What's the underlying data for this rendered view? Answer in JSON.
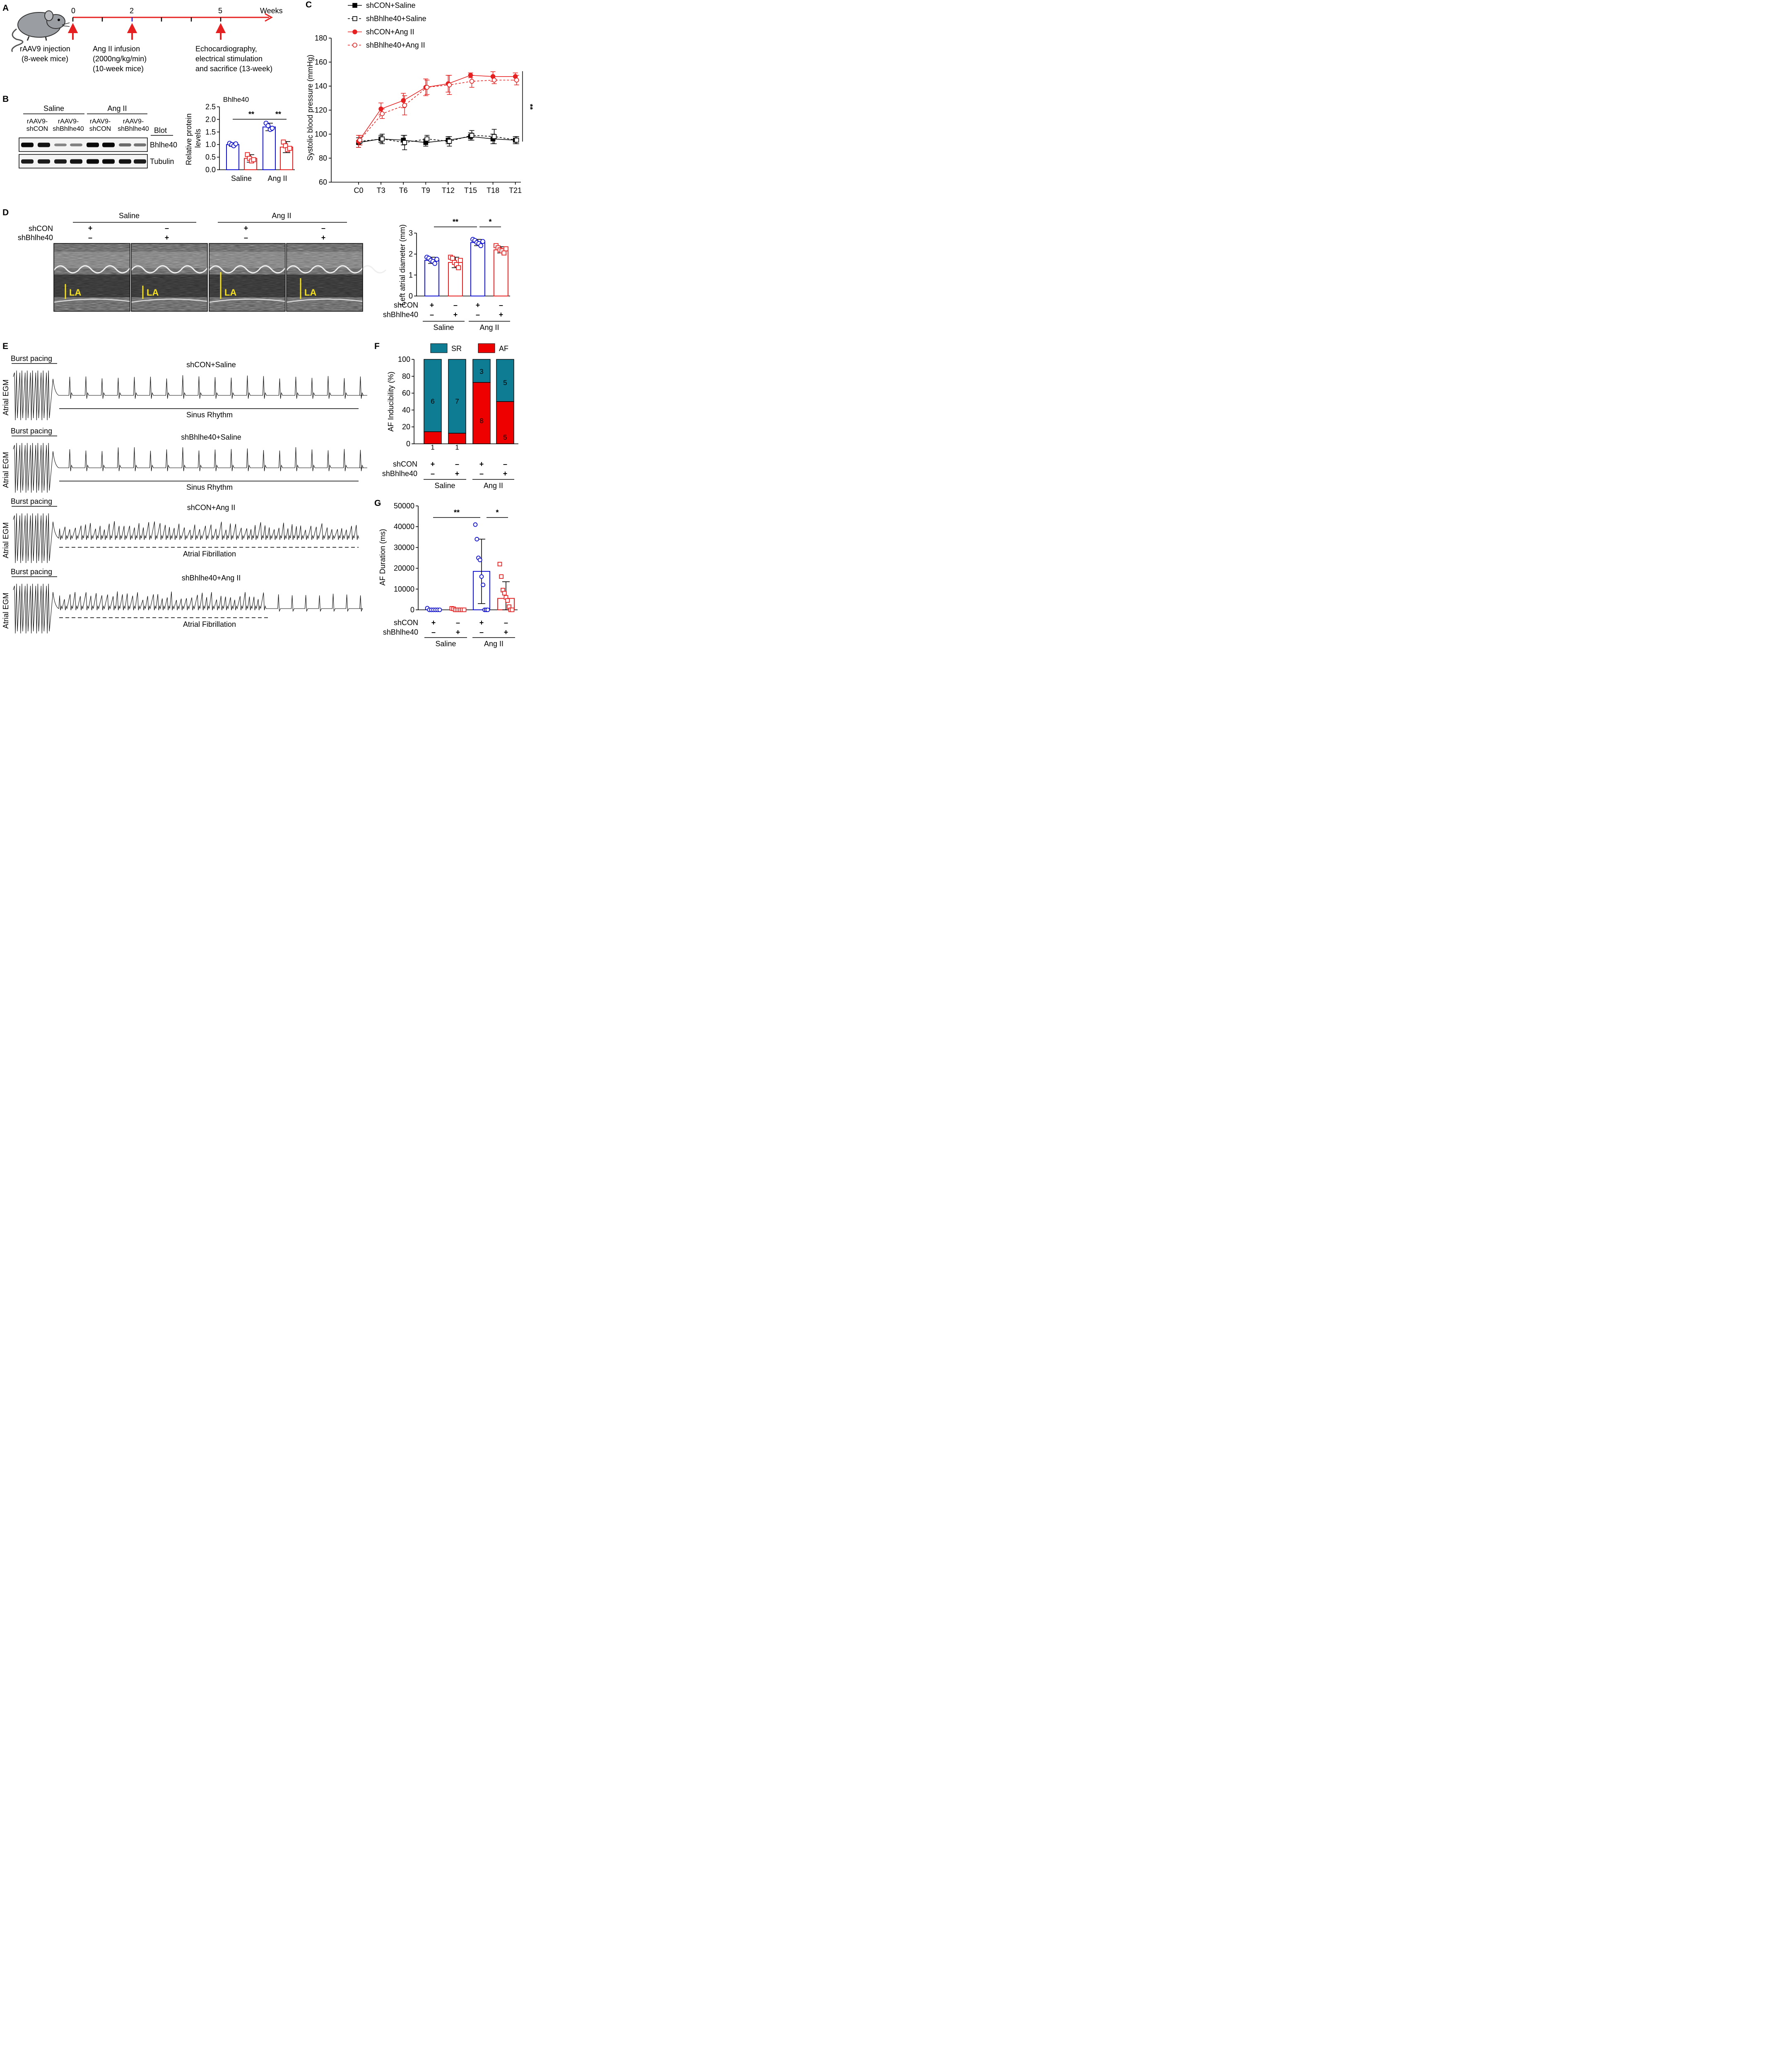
{
  "panels": [
    "A",
    "B",
    "C",
    "D",
    "E",
    "F",
    "G"
  ],
  "timeline": {
    "ticks": [
      "0",
      "2",
      "5"
    ],
    "unit": "Weeks",
    "events": [
      "rAAV9 injection",
      "(8-week mice)",
      "Ang II infusion",
      "(2000ng/kg/min)",
      "(10-week mice)",
      "Echocardiography,",
      "electrical stimulation",
      "and sacrifice (13-week)"
    ]
  },
  "blot": {
    "groups": [
      "Saline",
      "Ang II"
    ],
    "lanes": [
      [
        "rAAV9-",
        "shCON"
      ],
      [
        "rAAV9-",
        "shBhlhe40"
      ],
      [
        "rAAV9-",
        "shCON"
      ],
      [
        "rAAV9-",
        "shBhlhe40"
      ]
    ],
    "blot_label": "Blot",
    "bands": [
      "Bhlhe40",
      "Tubulin"
    ],
    "bhlhe40_band_intensity": [
      1.0,
      0.95,
      0.35,
      0.38,
      1.0,
      1.0,
      0.5,
      0.45
    ],
    "tubulin_band_intensity": [
      0.9,
      0.9,
      0.9,
      0.95,
      1.0,
      1.0,
      0.95,
      0.9
    ]
  },
  "signs": {
    "plus": "+",
    "minus": "–",
    "row1": "shCON",
    "row2": "shBhlhe40"
  },
  "labels_C": {
    "sig": "**"
  },
  "echo": {
    "groups": [
      "Saline",
      "Ang II"
    ],
    "rows": [
      "shCON",
      "shBhlhe40"
    ],
    "signs_shCON": [
      "+",
      "–",
      "+",
      "–"
    ],
    "signs_shBhlhe40": [
      "–",
      "+",
      "–",
      "+"
    ],
    "la_label": "LA"
  },
  "egm": {
    "ylabel": "Atrial EGM",
    "pacing": "Burst pacing",
    "traces": [
      {
        "title": "shCON+Saline",
        "rhythm": "Sinus Rhythm"
      },
      {
        "title": "shBhlhe40+Saline",
        "rhythm": "Sinus Rhythm"
      },
      {
        "title": "shCON+Ang II",
        "rhythm": "Atrial Fibrillation"
      },
      {
        "title": "shBhlhe40+Ang II",
        "rhythm": "Atrial Fibrillation"
      }
    ]
  },
  "colors": {
    "blue": "#1010d0",
    "red": "#e62020",
    "teal": "#0e7d94",
    "af_red": "#ee0000",
    "yellow": "#f5e020"
  },
  "chart_data": [
    {
      "panel": "B",
      "type": "bar",
      "title": "Bhlhe40",
      "ylabel": "Relative protein levels",
      "ylim": [
        0,
        2.5
      ],
      "yticks": [
        "0.0",
        "0.5",
        "1.0",
        "1.5",
        "2.0",
        "2.5"
      ],
      "categories": [
        "Saline",
        "Ang II"
      ],
      "bars": [
        {
          "value": 1.0,
          "sd": 0.07,
          "points": [
            1.05,
            1.0,
            0.95,
            1.03
          ]
        },
        {
          "value": 0.45,
          "sd": 0.15,
          "points": [
            0.6,
            0.45,
            0.35,
            0.4
          ]
        },
        {
          "value": 1.7,
          "sd": 0.15,
          "points": [
            1.85,
            1.75,
            1.6,
            1.65
          ]
        },
        {
          "value": 0.9,
          "sd": 0.22,
          "points": [
            1.1,
            0.95,
            0.8,
            0.85
          ]
        }
      ],
      "annotations": [
        "**",
        "**"
      ]
    },
    {
      "panel": "C",
      "type": "line",
      "ylabel": "Systolic blood pressure (mmHg)",
      "ylim": [
        60,
        180
      ],
      "yticks": [
        "60",
        "80",
        "100",
        "120",
        "140",
        "160",
        "180"
      ],
      "x": [
        "C0",
        "T3",
        "T6",
        "T9",
        "T12",
        "T15",
        "T18",
        "T21"
      ],
      "series": [
        {
          "name": "shCON+Saline",
          "values": [
            93,
            96,
            95,
            93,
            95,
            98,
            96,
            95
          ],
          "err": [
            4,
            3,
            4,
            3,
            3,
            3,
            4,
            3
          ]
        },
        {
          "name": "shBhlhe40+Saline",
          "values": [
            94,
            96,
            93,
            96,
            94,
            99,
            98,
            95
          ],
          "err": [
            3,
            4,
            6,
            3,
            4,
            4,
            6,
            3
          ]
        },
        {
          "name": "shCON+Ang II",
          "values": [
            94,
            121,
            128,
            139,
            142,
            149,
            148,
            148
          ],
          "err": [
            5,
            5,
            6,
            7,
            7,
            2,
            4,
            3
          ]
        },
        {
          "name": "shBhlhe40+Ang II",
          "values": [
            95,
            117,
            124,
            139,
            141,
            144,
            145,
            145
          ],
          "err": [
            4,
            4,
            8,
            6,
            8,
            5,
            3,
            4
          ]
        }
      ]
    },
    {
      "panel": "D",
      "type": "bar",
      "ylabel": "Left atrial diameter (mm)",
      "ylim": [
        0,
        3
      ],
      "yticks": [
        "0",
        "1",
        "2",
        "3"
      ],
      "categories": [
        "Saline",
        "Ang II"
      ],
      "bars": [
        {
          "value": 1.7,
          "sd": 0.15,
          "points": [
            1.85,
            1.8,
            1.7,
            1.65,
            1.55,
            1.75
          ]
        },
        {
          "value": 1.6,
          "sd": 0.25,
          "points": [
            1.85,
            1.8,
            1.6,
            1.5,
            1.35,
            1.7
          ]
        },
        {
          "value": 2.55,
          "sd": 0.15,
          "points": [
            2.7,
            2.65,
            2.55,
            2.5,
            2.4,
            2.6
          ]
        },
        {
          "value": 2.2,
          "sd": 0.15,
          "points": [
            2.4,
            2.3,
            2.2,
            2.15,
            2.05,
            2.25
          ]
        }
      ],
      "annotations": [
        "**",
        "*"
      ]
    },
    {
      "panel": "F",
      "type": "bar",
      "stacked": true,
      "ylabel": "AF Inducibility (%)",
      "ylim": [
        0,
        100
      ],
      "yticks": [
        "0",
        "20",
        "40",
        "60",
        "80",
        "100"
      ],
      "legend": [
        "SR",
        "AF"
      ],
      "categories": [
        "Saline",
        "Ang II"
      ],
      "af_pct": [
        14.3,
        12.5,
        72.7,
        50
      ],
      "counts_sr": [
        "6",
        "7",
        "3",
        "5"
      ],
      "counts_af": [
        "1",
        "1",
        "8",
        "5"
      ]
    },
    {
      "panel": "G",
      "type": "bar",
      "ylabel": "AF Duration (ms)",
      "ylim": [
        0,
        50000
      ],
      "yticks": [
        "0",
        "10000",
        "20000",
        "30000",
        "40000",
        "50000"
      ],
      "categories": [
        "Saline",
        "Ang II"
      ],
      "bars": [
        {
          "value": 0,
          "sd": 0,
          "points": [
            800,
            0,
            0,
            0,
            0,
            0,
            0
          ]
        },
        {
          "value": 0,
          "sd": 0,
          "points": [
            700,
            500,
            0,
            0,
            0,
            0,
            0,
            0
          ]
        },
        {
          "value": 18500,
          "sd": 15500,
          "points": [
            41000,
            34000,
            25000,
            24000,
            16000,
            12000,
            0,
            0,
            0
          ]
        },
        {
          "value": 5500,
          "sd": 8000,
          "points": [
            22000,
            16000,
            9500,
            8000,
            6000,
            4500,
            1500,
            0,
            0
          ]
        }
      ],
      "annotations": [
        "**",
        "*"
      ]
    }
  ]
}
